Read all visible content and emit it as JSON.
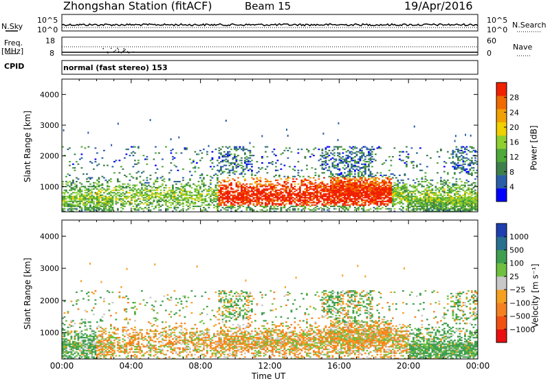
{
  "header": {
    "station": "Zhongshan Station (fitACF)",
    "beam": "Beam 15",
    "date": "19/Apr/2016"
  },
  "top_panels": {
    "nsky_label": "N.Sky",
    "nsky_ticks": [
      "10^5",
      "10^0"
    ],
    "nsearch_label": "N.Search",
    "freq_label": "Freq.",
    "freq_unit": "[MHz]",
    "freq_ticks": [
      "18",
      "8"
    ],
    "nave_label": "Nave",
    "nave_ticks": [
      "60",
      "0"
    ],
    "cpid_label": "CPID",
    "cpid_text": "normal (fast stereo) 153"
  },
  "x_axis": {
    "label": "Time UT",
    "ticks": [
      "00:00",
      "04:00",
      "08:00",
      "12:00",
      "16:00",
      "20:00",
      "00:00"
    ]
  },
  "colors": {
    "power_scale": [
      "#0000ff",
      "#2a5fa8",
      "#3e7f4a",
      "#4fa83a",
      "#8fcf30",
      "#f0d000",
      "#f0a000",
      "#f06a00",
      "#f02000"
    ],
    "velocity_scale": [
      "#e81010",
      "#f25010",
      "#f58020",
      "#f5a020",
      "#c8c8c8",
      "#6fc040",
      "#3f9f50",
      "#2a6f8f",
      "#1f3fb0"
    ]
  },
  "chart_data": [
    {
      "type": "heatmap",
      "title": "Power",
      "xlabel": "Time UT",
      "ylabel": "Slant Range [km]",
      "xlim": [
        0,
        24
      ],
      "ylim": [
        180,
        4500
      ],
      "y_ticks": [
        "1000",
        "2000",
        "3000",
        "4000"
      ],
      "y_tick_values": [
        1000,
        2000,
        3000,
        4000
      ],
      "colorbar": {
        "label": "Power [dB]",
        "ticks": [
          "4",
          "8",
          "12",
          "16",
          "20",
          "24",
          "28"
        ],
        "range": [
          0,
          32
        ]
      }
    },
    {
      "type": "heatmap",
      "title": "Velocity",
      "xlabel": "Time UT",
      "ylabel": "Slant Range [km]",
      "xlim": [
        0,
        24
      ],
      "ylim": [
        180,
        4500
      ],
      "y_ticks": [
        "1000",
        "2000",
        "3000",
        "4000"
      ],
      "y_tick_values": [
        1000,
        2000,
        3000,
        4000
      ],
      "colorbar": {
        "label": "Velocity [m s⁻¹]",
        "ticks": [
          "1000",
          "500",
          "100",
          "25",
          "−25",
          "−100",
          "−500",
          "−1000"
        ]
      }
    }
  ]
}
